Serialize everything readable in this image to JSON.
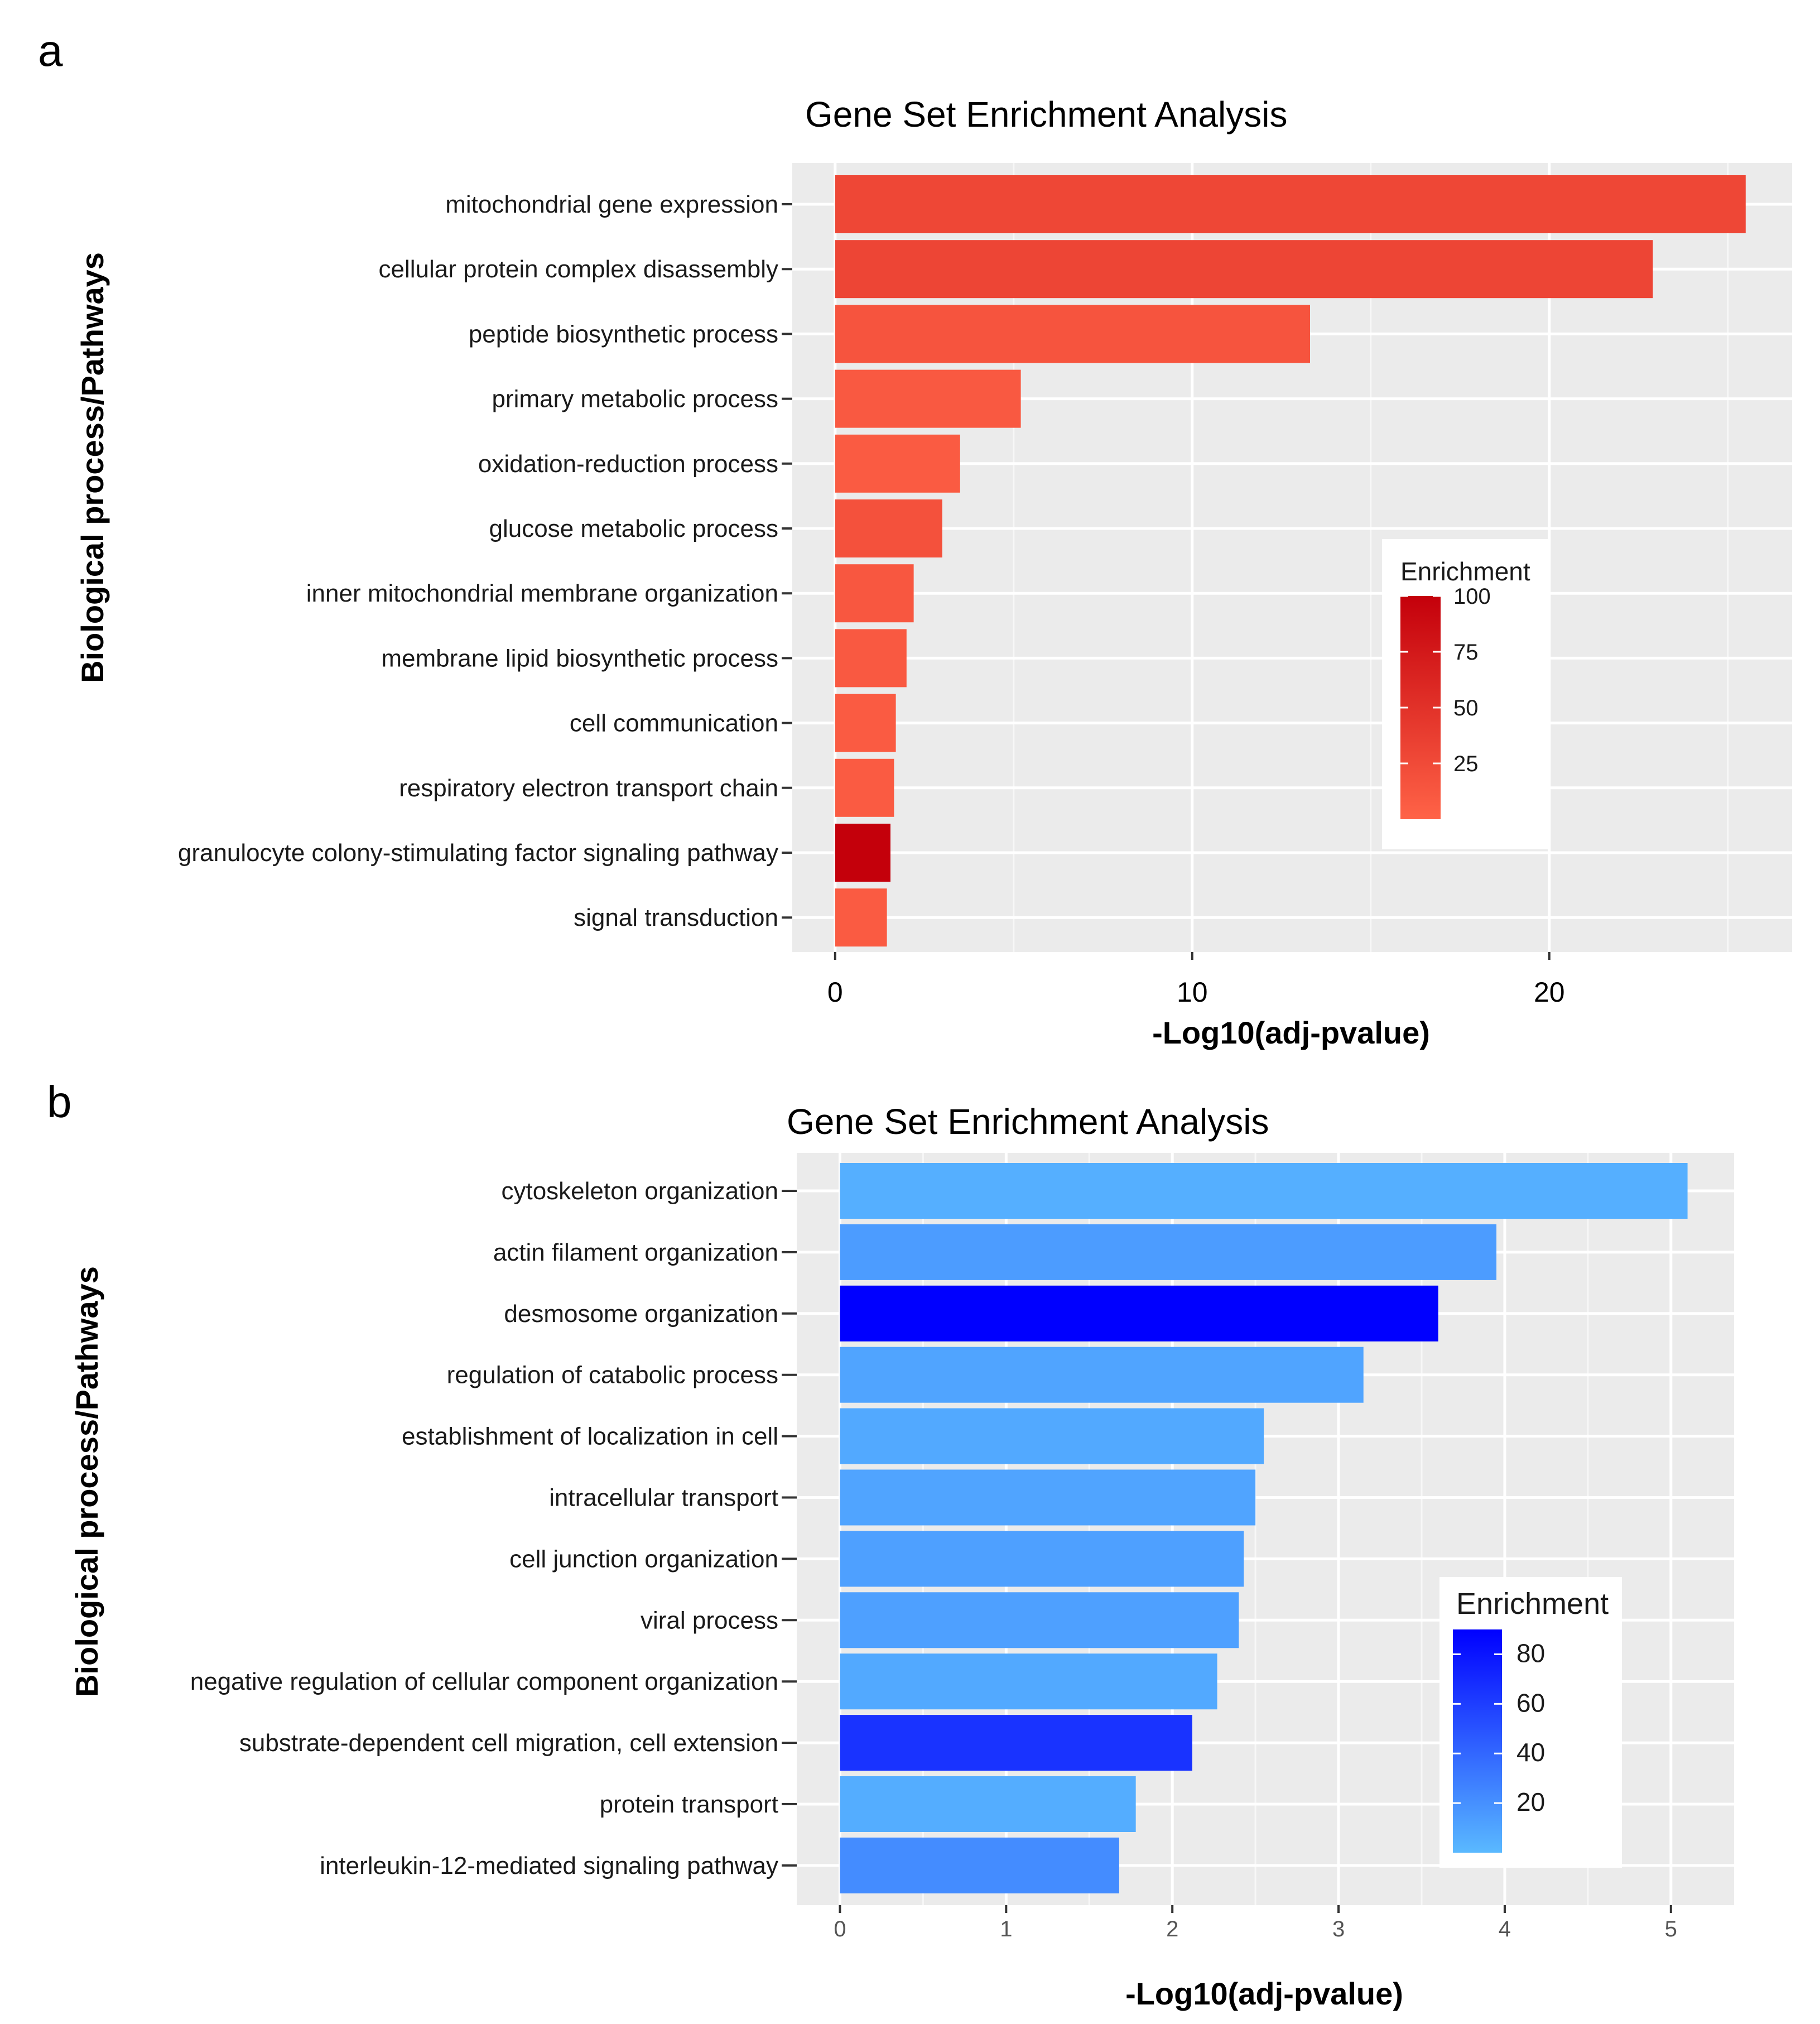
{
  "chart_data": [
    {
      "panel": "a",
      "type": "bar",
      "orientation": "horizontal",
      "title": "Gene Set Enrichment Analysis",
      "xlabel": "-Log10(adj-pvalue)",
      "ylabel": "Biological process/Pathways",
      "xlim": [
        -1.2,
        26.8
      ],
      "xticks": [
        0,
        10,
        20
      ],
      "xtick_labels": [
        "0",
        "10",
        "20"
      ],
      "grid": true,
      "categories": [
        "mitochondrial gene expression",
        "cellular protein complex disassembly",
        "peptide biosynthetic process",
        "primary metabolic process",
        "oxidation-reduction process",
        "glucose metabolic process",
        "inner mitochondrial membrane organization",
        "membrane lipid biosynthetic process",
        "cell communication",
        "respiratory electron transport chain",
        "granulocyte colony-stimulating factor signaling pathway",
        "signal transduction"
      ],
      "values": [
        25.5,
        22.9,
        13.3,
        5.2,
        3.5,
        3.0,
        2.2,
        2.0,
        1.7,
        1.65,
        1.55,
        1.45
      ],
      "enrichment": [
        28,
        30,
        15,
        10,
        8,
        18,
        12,
        10,
        8,
        8,
        100,
        8
      ],
      "legend": {
        "title": "Enrichment",
        "ticks": [
          100,
          75,
          50,
          25
        ],
        "tick_labels": [
          "100",
          "75",
          "50",
          "25"
        ],
        "range": [
          0,
          100
        ],
        "color_low": "#ff6347",
        "color_high": "#c4000b",
        "placement": "right-middle"
      }
    },
    {
      "panel": "b",
      "type": "bar",
      "orientation": "horizontal",
      "title": "Gene Set Enrichment Analysis",
      "xlabel": "-Log10(adj-pvalue)",
      "ylabel": "Biological process/Pathways",
      "xlim": [
        -0.26,
        5.38
      ],
      "xticks": [
        0,
        1,
        2,
        3,
        4,
        5
      ],
      "xtick_labels": [
        "0",
        "1",
        "2",
        "3",
        "4",
        "5"
      ],
      "grid": true,
      "categories": [
        "cytoskeleton organization",
        "actin filament organization",
        "desmosome organization",
        "regulation of catabolic process",
        "establishment of localization in cell",
        "intracellular transport",
        "cell junction organization",
        "viral process",
        "negative regulation of cellular component organization",
        "substrate-dependent cell migration, cell extension",
        "protein transport",
        "interleukin-12-mediated signaling pathway"
      ],
      "values": [
        5.1,
        3.95,
        3.6,
        3.15,
        2.55,
        2.5,
        2.43,
        2.4,
        2.27,
        2.12,
        1.78,
        1.68
      ],
      "enrichment": [
        5,
        14,
        90,
        10,
        8,
        10,
        12,
        12,
        8,
        65,
        6,
        22
      ],
      "legend": {
        "title": "Enrichment",
        "ticks": [
          80,
          60,
          40,
          20
        ],
        "tick_labels": [
          "80",
          "60",
          "40",
          "20"
        ],
        "range": [
          0,
          90
        ],
        "color_low": "#5ab9ff",
        "color_high": "#0000ff",
        "placement": "right-bottom"
      }
    }
  ],
  "panel_letters": [
    "a",
    "b"
  ]
}
